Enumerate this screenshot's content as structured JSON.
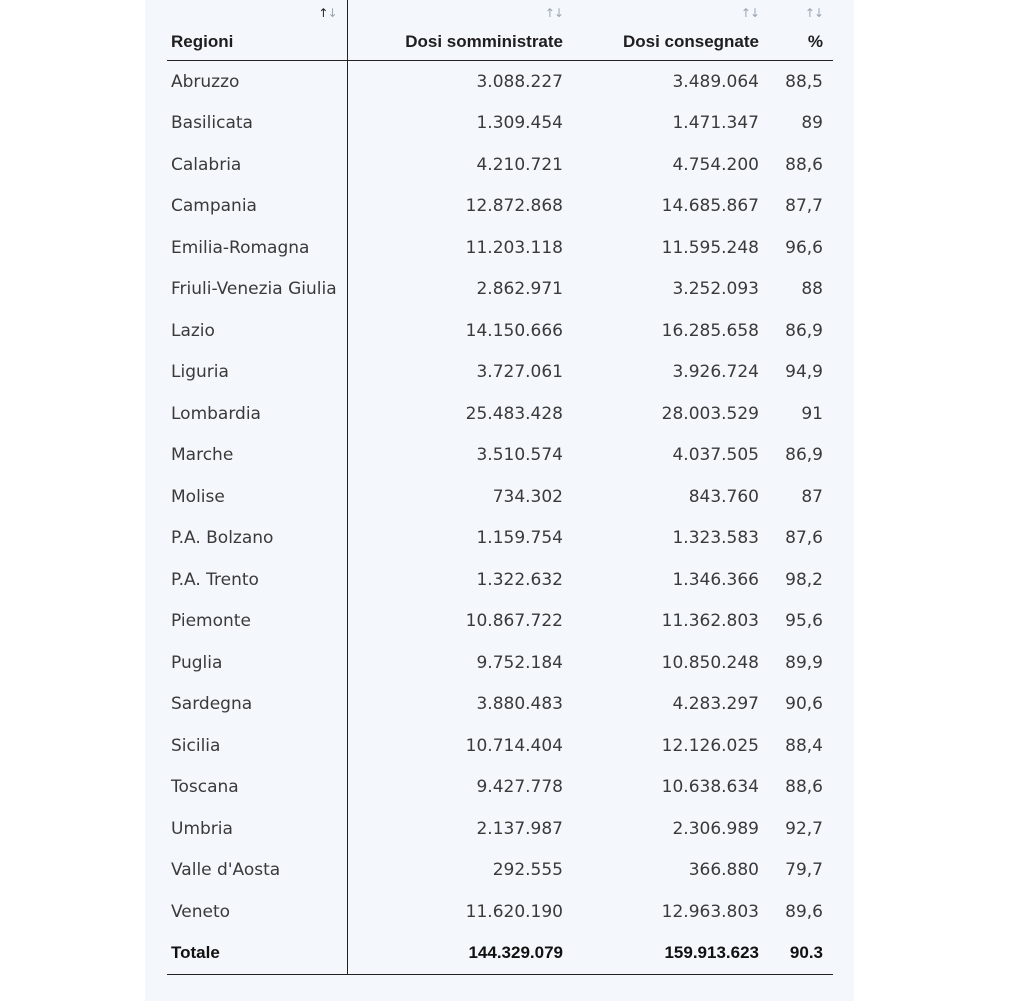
{
  "headers": {
    "regioni": "Regioni",
    "somministrate": "Dosi somministrate",
    "consegnate": "Dosi consegnate",
    "percent": "%"
  },
  "sort_icon": {
    "up": "↑",
    "down": "↓"
  },
  "rows": [
    {
      "regione": "Abruzzo",
      "somministrate": "3.088.227",
      "consegnate": "3.489.064",
      "percent": "88,5"
    },
    {
      "regione": "Basilicata",
      "somministrate": "1.309.454",
      "consegnate": "1.471.347",
      "percent": "89"
    },
    {
      "regione": "Calabria",
      "somministrate": "4.210.721",
      "consegnate": "4.754.200",
      "percent": "88,6"
    },
    {
      "regione": "Campania",
      "somministrate": "12.872.868",
      "consegnate": "14.685.867",
      "percent": "87,7"
    },
    {
      "regione": "Emilia-Romagna",
      "somministrate": "11.203.118",
      "consegnate": "11.595.248",
      "percent": "96,6"
    },
    {
      "regione": "Friuli-Venezia Giulia",
      "somministrate": "2.862.971",
      "consegnate": "3.252.093",
      "percent": "88"
    },
    {
      "regione": "Lazio",
      "somministrate": "14.150.666",
      "consegnate": "16.285.658",
      "percent": "86,9"
    },
    {
      "regione": "Liguria",
      "somministrate": "3.727.061",
      "consegnate": "3.926.724",
      "percent": "94,9"
    },
    {
      "regione": "Lombardia",
      "somministrate": "25.483.428",
      "consegnate": "28.003.529",
      "percent": "91"
    },
    {
      "regione": "Marche",
      "somministrate": "3.510.574",
      "consegnate": "4.037.505",
      "percent": "86,9"
    },
    {
      "regione": "Molise",
      "somministrate": "734.302",
      "consegnate": "843.760",
      "percent": "87"
    },
    {
      "regione": "P.A. Bolzano",
      "somministrate": "1.159.754",
      "consegnate": "1.323.583",
      "percent": "87,6"
    },
    {
      "regione": "P.A. Trento",
      "somministrate": "1.322.632",
      "consegnate": "1.346.366",
      "percent": "98,2"
    },
    {
      "regione": "Piemonte",
      "somministrate": "10.867.722",
      "consegnate": "11.362.803",
      "percent": "95,6"
    },
    {
      "regione": "Puglia",
      "somministrate": "9.752.184",
      "consegnate": "10.850.248",
      "percent": "89,9"
    },
    {
      "regione": "Sardegna",
      "somministrate": "3.880.483",
      "consegnate": "4.283.297",
      "percent": "90,6"
    },
    {
      "regione": "Sicilia",
      "somministrate": "10.714.404",
      "consegnate": "12.126.025",
      "percent": "88,4"
    },
    {
      "regione": "Toscana",
      "somministrate": "9.427.778",
      "consegnate": "10.638.634",
      "percent": "88,6"
    },
    {
      "regione": "Umbria",
      "somministrate": "2.137.987",
      "consegnate": "2.306.989",
      "percent": "92,7"
    },
    {
      "regione": "Valle d'Aosta",
      "somministrate": "292.555",
      "consegnate": "366.880",
      "percent": "79,7"
    },
    {
      "regione": "Veneto",
      "somministrate": "11.620.190",
      "consegnate": "12.963.803",
      "percent": "89,6"
    }
  ],
  "total": {
    "label": "Totale",
    "somministrate": "144.329.079",
    "consegnate": "159.913.623",
    "percent": "90.3"
  }
}
